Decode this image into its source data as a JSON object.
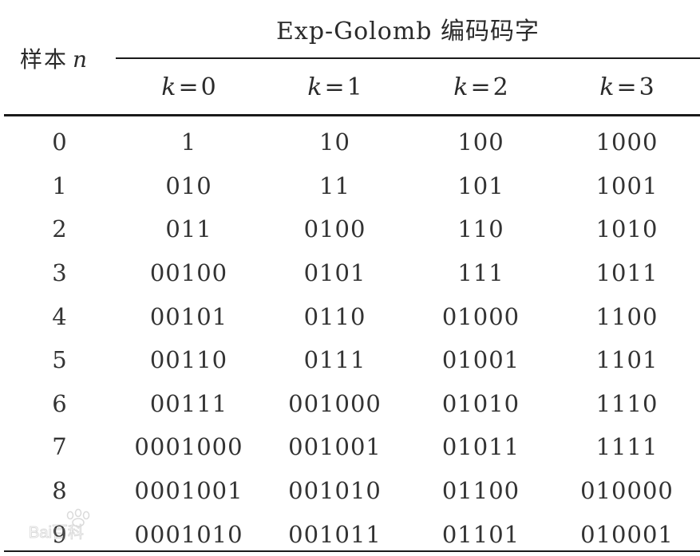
{
  "table": {
    "sample_header": "样本",
    "sample_variable": "n",
    "group_header": "Exp-Golomb 编码码字",
    "k_columns": [
      {
        "var": "k",
        "eq": "=",
        "value": "0"
      },
      {
        "var": "k",
        "eq": "=",
        "value": "1"
      },
      {
        "var": "k",
        "eq": "=",
        "value": "2"
      },
      {
        "var": "k",
        "eq": "=",
        "value": "3"
      }
    ],
    "rows": [
      {
        "n": "0",
        "k0": "1",
        "k1": "10",
        "k2": "100",
        "k3": "1000"
      },
      {
        "n": "1",
        "k0": "010",
        "k1": "11",
        "k2": "101",
        "k3": "1001"
      },
      {
        "n": "2",
        "k0": "011",
        "k1": "0100",
        "k2": "110",
        "k3": "1010"
      },
      {
        "n": "3",
        "k0": "00100",
        "k1": "0101",
        "k2": "111",
        "k3": "1011"
      },
      {
        "n": "4",
        "k0": "00101",
        "k1": "0110",
        "k2": "01000",
        "k3": "1100"
      },
      {
        "n": "5",
        "k0": "00110",
        "k1": "0111",
        "k2": "01001",
        "k3": "1101"
      },
      {
        "n": "6",
        "k0": "00111",
        "k1": "001000",
        "k2": "01010",
        "k3": "1110"
      },
      {
        "n": "7",
        "k0": "0001000",
        "k1": "001001",
        "k2": "01011",
        "k3": "1111"
      },
      {
        "n": "8",
        "k0": "0001001",
        "k1": "001010",
        "k2": "01100",
        "k3": "010000"
      },
      {
        "n": "9",
        "k0": "0001010",
        "k1": "001011",
        "k2": "01101",
        "k3": "010001"
      }
    ]
  },
  "watermark": {
    "icon": "baidu-paw-icon",
    "text": "Bai百科"
  }
}
